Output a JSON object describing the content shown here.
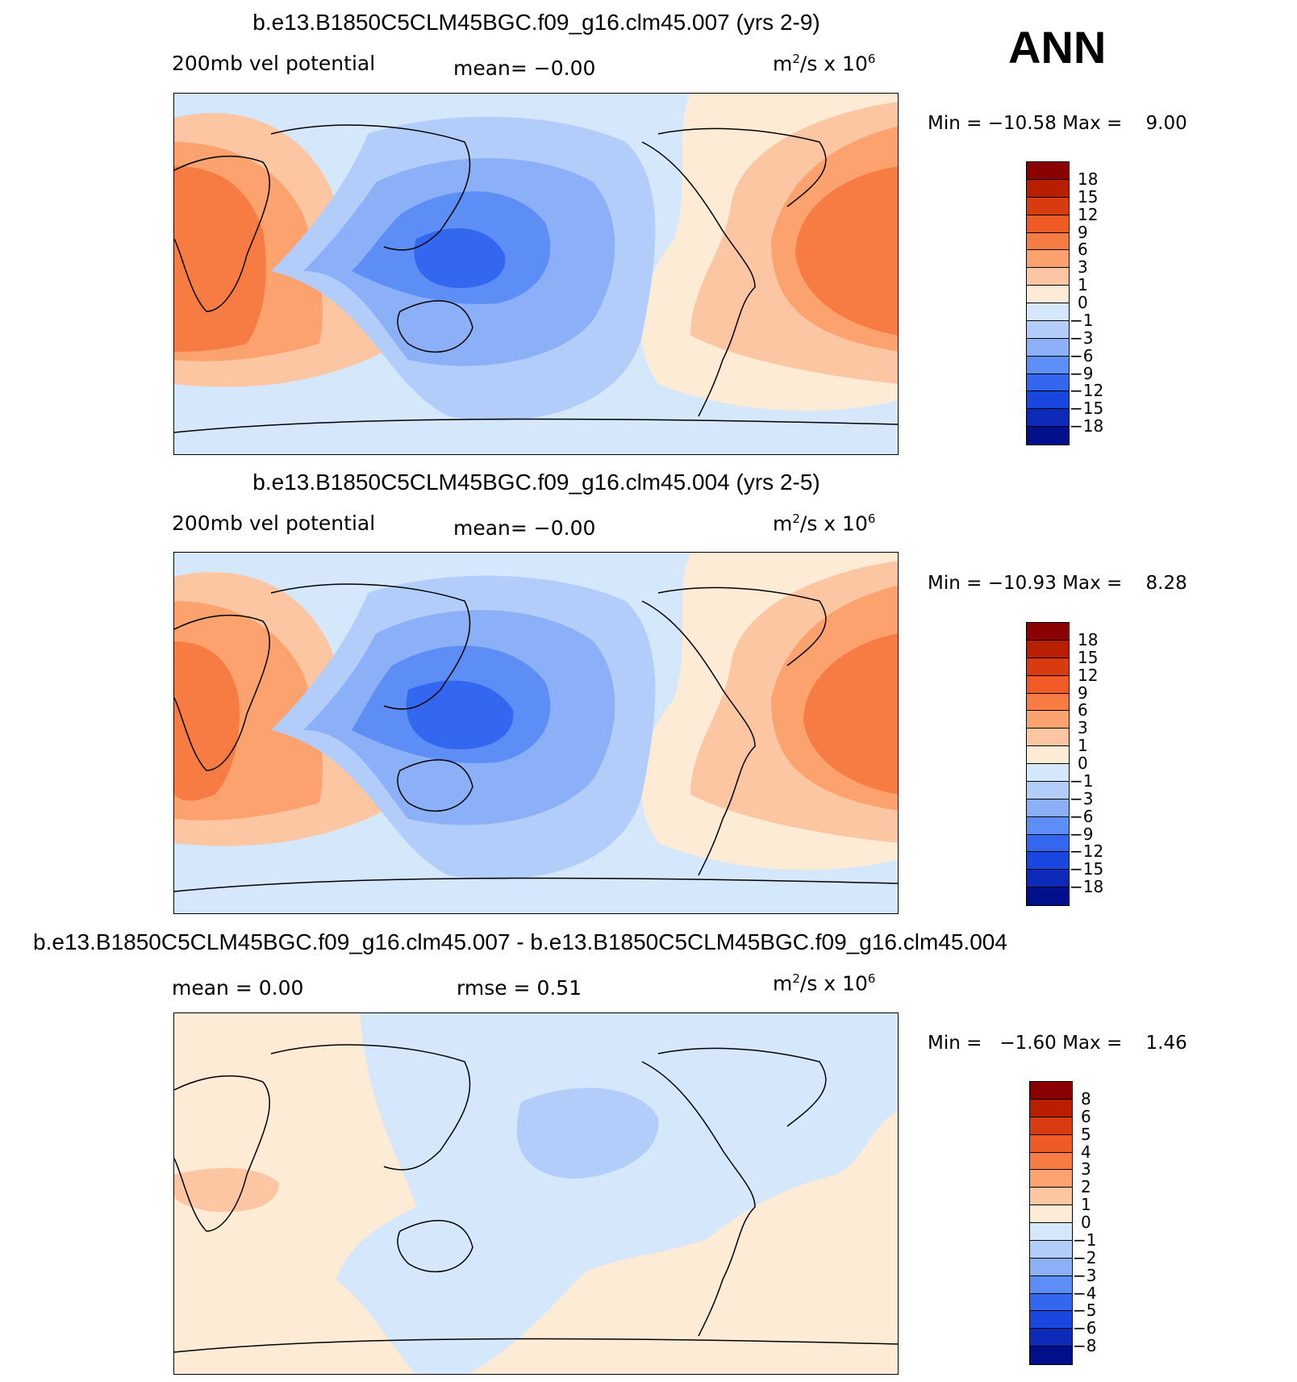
{
  "corner_label": "ANN",
  "panels": [
    {
      "title": "b.e13.B1850C5CLM45BGC.f09_g16.clm45.007 (yrs 2-9)",
      "variable": "200mb vel potential",
      "stat1": "mean=   −0.00",
      "stat2": "",
      "units_base": "m",
      "units_exp": "2",
      "units_mid": "/s x 10",
      "units_exp2": "6",
      "minmax": "Min = −10.58 Max =    9.00",
      "colorbar_labels": [
        "18",
        "15",
        "12",
        "9",
        "6",
        "3",
        "1",
        "0",
        "−1",
        "−3",
        "−6",
        "−9",
        "−12",
        "−15",
        "−18"
      ],
      "colorbar_colors": [
        "#8b0000",
        "#b81f00",
        "#d83b10",
        "#f05a24",
        "#f77c43",
        "#fba26f",
        "#fdc6a3",
        "#fdebd5",
        "#d4e7fb",
        "#b3cdfa",
        "#8bb0f8",
        "#5c8ef5",
        "#3467f0",
        "#1a46e0",
        "#0d2bb8",
        "#00108a"
      ]
    },
    {
      "title": "b.e13.B1850C5CLM45BGC.f09_g16.clm45.004 (yrs 2-5)",
      "variable": "200mb vel potential",
      "stat1": "mean=   −0.00",
      "stat2": "",
      "units_base": "m",
      "units_exp": "2",
      "units_mid": "/s x 10",
      "units_exp2": "6",
      "minmax": "Min = −10.93 Max =    8.28",
      "colorbar_labels": [
        "18",
        "15",
        "12",
        "9",
        "6",
        "3",
        "1",
        "0",
        "−1",
        "−3",
        "−6",
        "−9",
        "−12",
        "−15",
        "−18"
      ],
      "colorbar_colors": [
        "#8b0000",
        "#b81f00",
        "#d83b10",
        "#f05a24",
        "#f77c43",
        "#fba26f",
        "#fdc6a3",
        "#fdebd5",
        "#d4e7fb",
        "#b3cdfa",
        "#8bb0f8",
        "#5c8ef5",
        "#3467f0",
        "#1a46e0",
        "#0d2bb8",
        "#00108a"
      ]
    },
    {
      "title": "b.e13.B1850C5CLM45BGC.f09_g16.clm45.007 - b.e13.B1850C5CLM45BGC.f09_g16.clm45.004",
      "variable": "",
      "stat1": "mean =    0.00",
      "stat2": "rmse =    0.51",
      "units_base": "m",
      "units_exp": "2",
      "units_mid": "/s x 10",
      "units_exp2": "6",
      "minmax": "Min =   −1.60 Max =    1.46",
      "colorbar_labels": [
        "8",
        "6",
        "5",
        "4",
        "3",
        "2",
        "1",
        "0",
        "−1",
        "−2",
        "−3",
        "−4",
        "−5",
        "−6",
        "−8"
      ],
      "colorbar_colors": [
        "#8b0000",
        "#b81f00",
        "#d83b10",
        "#f05a24",
        "#f77c43",
        "#fba26f",
        "#fdc6a3",
        "#fdebd5",
        "#d4e7fb",
        "#b3cdfa",
        "#8bb0f8",
        "#5c8ef5",
        "#3467f0",
        "#1a46e0",
        "#0d2bb8",
        "#00108a"
      ]
    }
  ]
}
